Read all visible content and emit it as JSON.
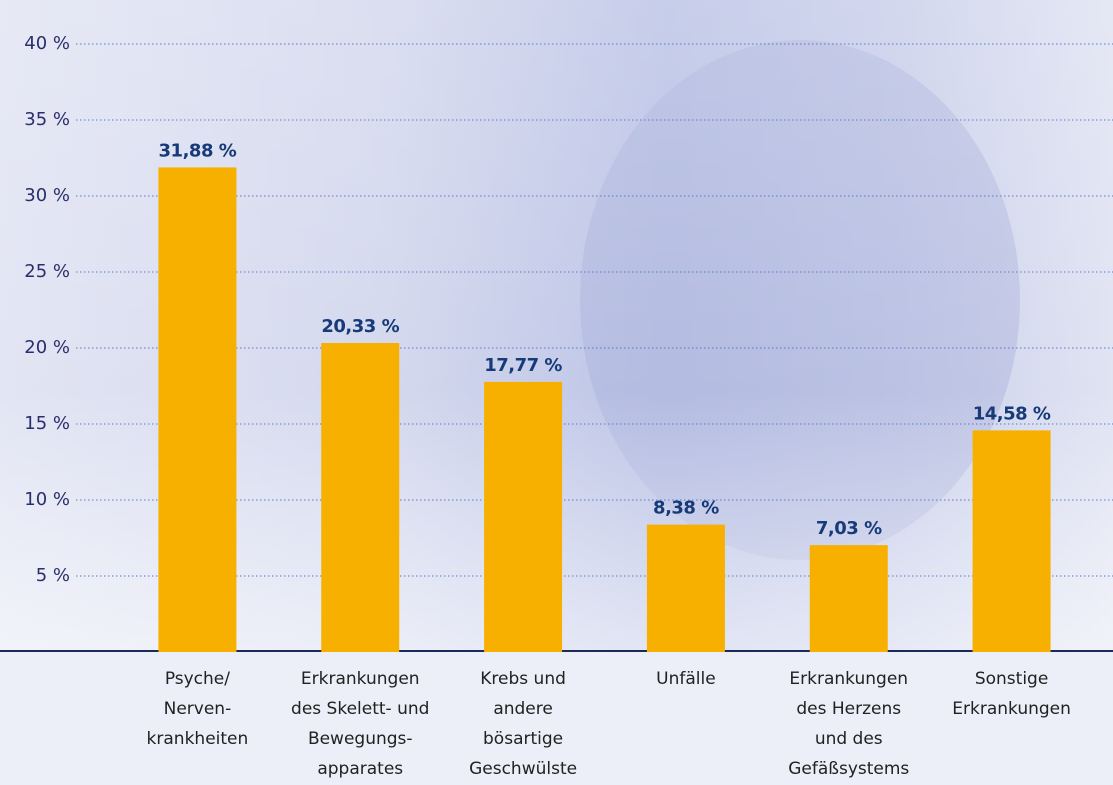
{
  "chart_data": {
    "type": "bar",
    "categories": [
      [
        "Psyche/",
        "Nerven-",
        "krankheiten"
      ],
      [
        "Erkrankungen",
        "des Skelett- und",
        "Bewegungs-",
        "apparates"
      ],
      [
        "Krebs und",
        "andere",
        "bösartige",
        "Geschwülste"
      ],
      [
        "Unfälle"
      ],
      [
        "Erkrankungen",
        "des Herzens",
        "und des",
        "Gefäßsystems"
      ],
      [
        "Sonstige",
        "Erkrankungen"
      ]
    ],
    "values": [
      31.88,
      20.33,
      17.77,
      8.38,
      7.03,
      14.58
    ],
    "value_labels": [
      "31,88 %",
      "20,33 %",
      "17,77 %",
      "8,38 %",
      "7,03 %",
      "14,58 %"
    ],
    "color": "#f7b000",
    "ylim": [
      0,
      40
    ],
    "yticks": [
      {
        "value": 5,
        "label": "5 %"
      },
      {
        "value": 10,
        "label": "10 %"
      },
      {
        "value": 15,
        "label": "15 %"
      },
      {
        "value": 20,
        "label": "20 %"
      },
      {
        "value": 25,
        "label": "25 %"
      },
      {
        "value": 30,
        "label": "30 %"
      },
      {
        "value": 35,
        "label": "35 %"
      },
      {
        "value": 40,
        "label": "40 %"
      }
    ],
    "grid": true
  }
}
